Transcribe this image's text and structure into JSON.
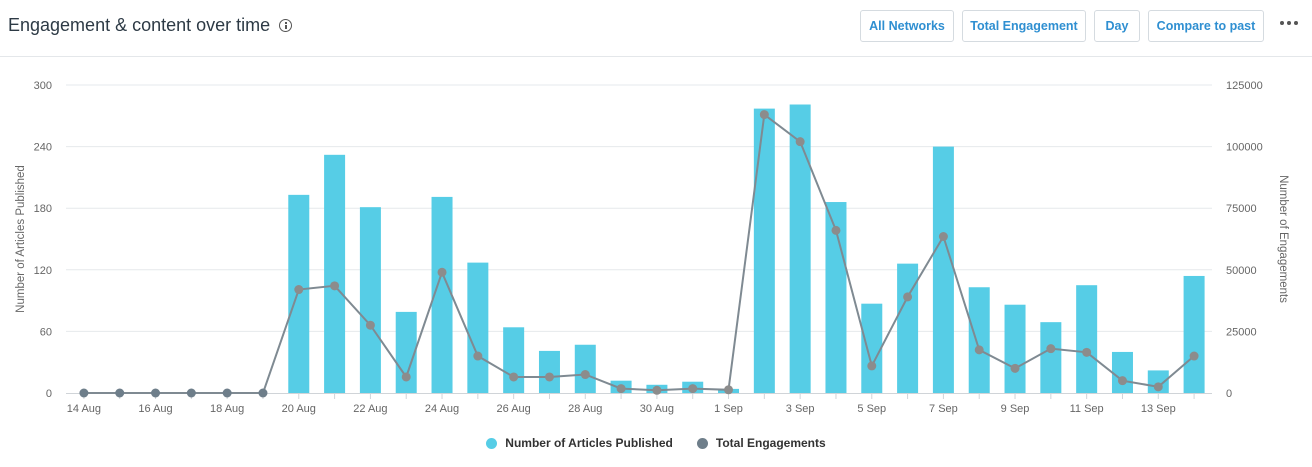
{
  "header": {
    "title": "Engagement & content over time",
    "buttons": {
      "networks": "All Networks",
      "metric": "Total Engagement",
      "interval": "Day",
      "compare": "Compare to past"
    }
  },
  "colors": {
    "bars": "#56cde6",
    "line": "#7f8a92",
    "dots": "#8c8c8c",
    "legend_line_dot": "#6e7e8a"
  },
  "chart_data": {
    "type": "bar+line",
    "categories": [
      "14 Aug",
      "15 Aug",
      "16 Aug",
      "17 Aug",
      "18 Aug",
      "19 Aug",
      "20 Aug",
      "21 Aug",
      "22 Aug",
      "23 Aug",
      "24 Aug",
      "25 Aug",
      "26 Aug",
      "27 Aug",
      "28 Aug",
      "29 Aug",
      "30 Aug",
      "31 Aug",
      "1 Sep",
      "2 Sep",
      "3 Sep",
      "4 Sep",
      "5 Sep",
      "6 Sep",
      "7 Sep",
      "8 Sep",
      "9 Sep",
      "10 Sep",
      "11 Sep",
      "12 Sep",
      "13 Sep",
      "14 Sep"
    ],
    "x_tick_labels": [
      "14 Aug",
      "",
      "16 Aug",
      "",
      "18 Aug",
      "",
      "20 Aug",
      "",
      "22 Aug",
      "",
      "24 Aug",
      "",
      "26 Aug",
      "",
      "28 Aug",
      "",
      "30 Aug",
      "",
      "1 Sep",
      "",
      "3 Sep",
      "",
      "5 Sep",
      "",
      "7 Sep",
      "",
      "9 Sep",
      "",
      "11 Sep",
      "",
      "13 Sep",
      ""
    ],
    "series": [
      {
        "name": "Number of Articles Published",
        "type": "bar",
        "axis": "left",
        "values": [
          0,
          0,
          0,
          0,
          0,
          0,
          193,
          232,
          181,
          79,
          191,
          127,
          64,
          41,
          47,
          12,
          8,
          11,
          4,
          277,
          281,
          186,
          87,
          126,
          240,
          103,
          86,
          69,
          105,
          40,
          22,
          114
        ]
      },
      {
        "name": "Total Engagements",
        "type": "line",
        "axis": "right",
        "values": [
          0,
          0,
          0,
          0,
          0,
          0,
          42000,
          43500,
          27500,
          6500,
          49000,
          15000,
          6500,
          6500,
          7500,
          1800,
          1100,
          1800,
          1300,
          113000,
          102000,
          66000,
          11000,
          39000,
          63500,
          17500,
          10000,
          18000,
          16500,
          5000,
          2500,
          15000
        ]
      }
    ],
    "y_left": {
      "label": "Number of Articles Published",
      "min": 0,
      "max": 300,
      "ticks": [
        0,
        60,
        120,
        180,
        240,
        300
      ]
    },
    "y_right": {
      "label": "Number of Engagements",
      "min": 0,
      "max": 125000,
      "ticks": [
        0,
        25000,
        50000,
        75000,
        100000,
        125000
      ]
    },
    "grid": true,
    "legend_position": "bottom-center"
  }
}
